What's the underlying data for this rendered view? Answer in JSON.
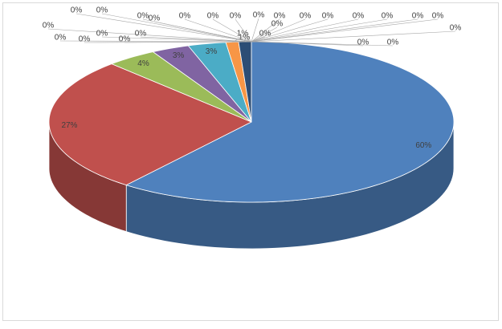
{
  "chart_data": {
    "type": "pie3d",
    "values": [
      60,
      27,
      4,
      3,
      3,
      1,
      1,
      0,
      0,
      0,
      0,
      0,
      0,
      0,
      0,
      0,
      0,
      0,
      0,
      0,
      0,
      0,
      0,
      0,
      0,
      0,
      0,
      0,
      0,
      0,
      0,
      0,
      0
    ],
    "value_labels": [
      "60%",
      "27%",
      "4%",
      "3%",
      "3%",
      "1%",
      "1%",
      "0%",
      "0%",
      "0%",
      "0%",
      "0%",
      "0%",
      "0%",
      "0%",
      "0%",
      "0%",
      "0%",
      "0%",
      "0%",
      "0%",
      "0%",
      "0%",
      "0%",
      "0%",
      "0%",
      "0%",
      "0%",
      "0%",
      "0%",
      "0%",
      "0%",
      "0%"
    ],
    "colors": [
      "#4f81bd",
      "#c0504d",
      "#9bbb59",
      "#8064a2",
      "#4bacc6",
      "#f79646",
      "#2c4d75",
      "#772c2a",
      "#5f7530",
      "#4d3b62",
      "#276a7c",
      "#b65708",
      "#729aca",
      "#d07b79",
      "#b3cc82",
      "#9d89b7",
      "#74bfd3",
      "#f9ac6b",
      "#3a64a0",
      "#9e3b38",
      "#7e9c40",
      "#664f82",
      "#358ea4",
      "#f07f09",
      "#95b3d7",
      "#dba09e",
      "#c5d8a6",
      "#b9abcb",
      "#99cfdd",
      "#fbc092",
      "#1f3654",
      "#55201e",
      "#44532a"
    ]
  }
}
